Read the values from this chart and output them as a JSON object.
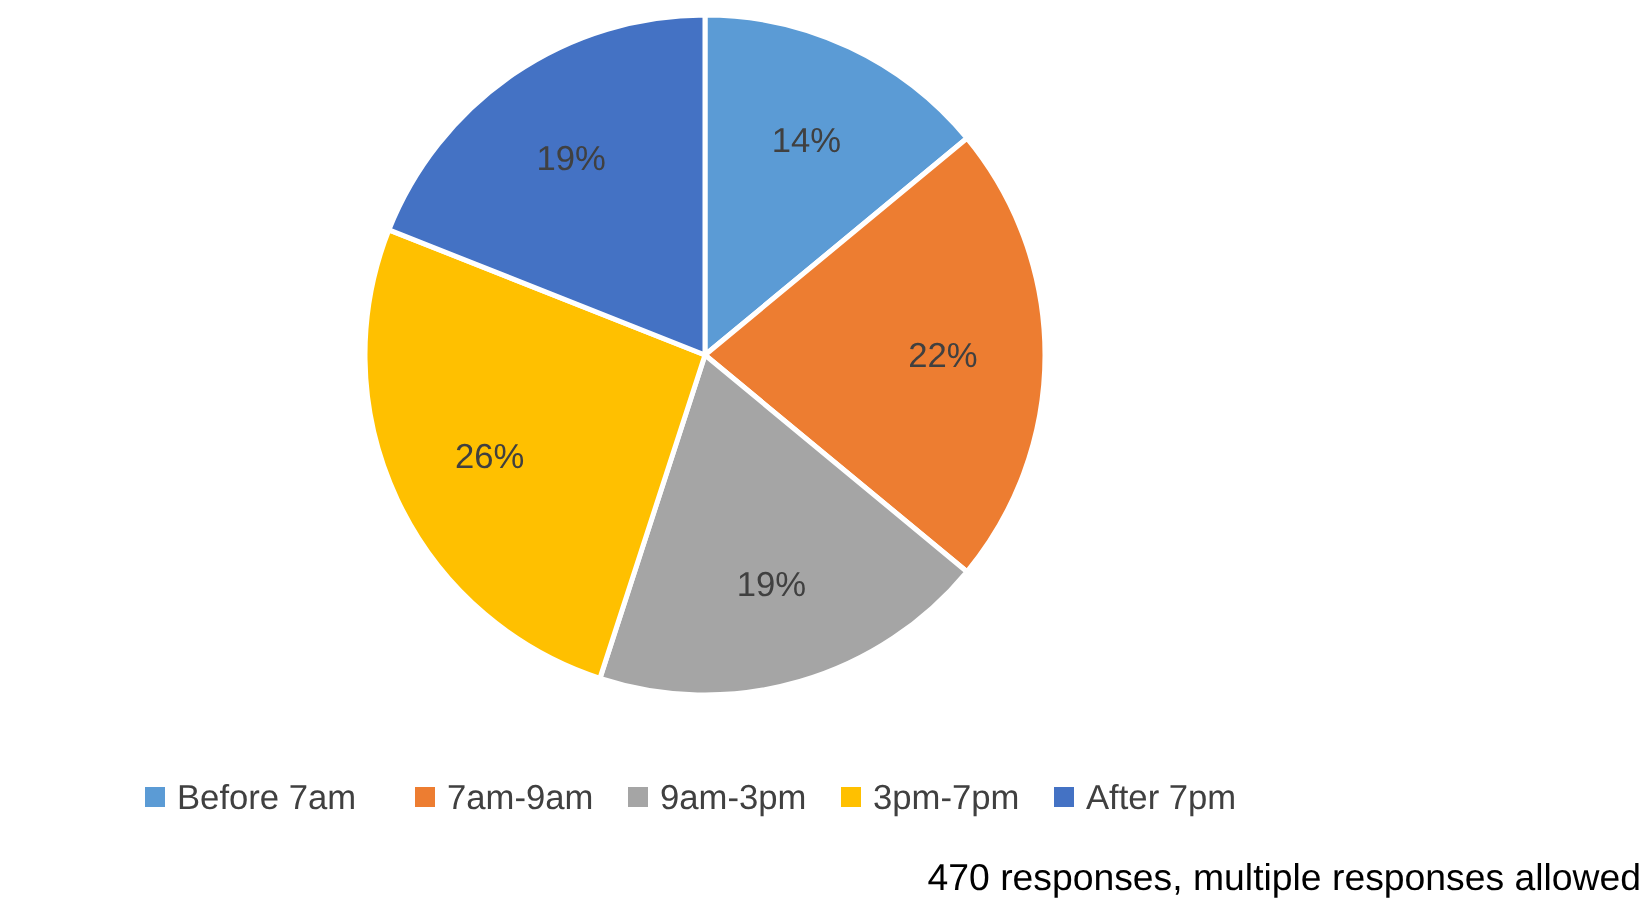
{
  "chart_data": {
    "type": "pie",
    "categories": [
      "Before 7am",
      "7am-9am",
      "9am-3pm",
      "3pm-7pm",
      "After 7pm"
    ],
    "values": [
      14,
      22,
      19,
      26,
      19
    ],
    "value_labels": [
      "14%",
      "22%",
      "19%",
      "26%",
      "19%"
    ],
    "colors": [
      "#5b9bd5",
      "#ed7d31",
      "#a5a5a5",
      "#ffc000",
      "#4472c4"
    ],
    "legend": "bottom",
    "annotations": [
      "470 responses, multiple responses allowed"
    ]
  }
}
